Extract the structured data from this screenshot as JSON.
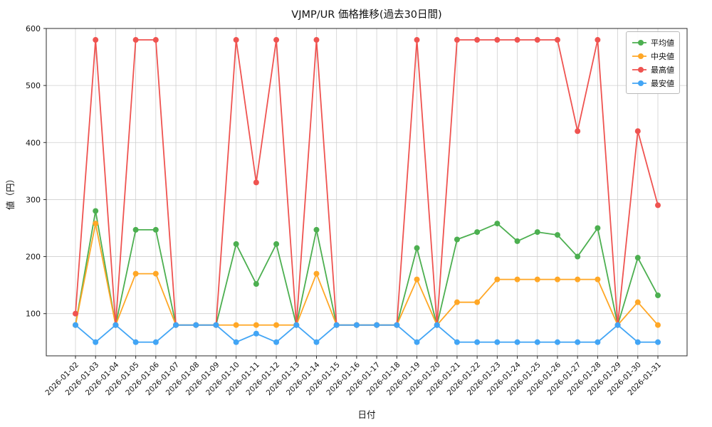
{
  "title": "VJMP/UR 価格推移(過去30日間)",
  "chart_data": {
    "type": "line",
    "title": "VJMP/UR 価格推移(過去30日間)",
    "xlabel": "日付",
    "ylabel": "値（円）",
    "x": [
      "2026-01-02",
      "2026-01-03",
      "2026-01-04",
      "2026-01-05",
      "2026-01-06",
      "2026-01-07",
      "2026-01-08",
      "2026-01-09",
      "2026-01-10",
      "2026-01-11",
      "2026-01-12",
      "2026-01-13",
      "2026-01-14",
      "2026-01-15",
      "2026-01-16",
      "2026-01-17",
      "2026-01-18",
      "2026-01-19",
      "2026-01-20",
      "2026-01-21",
      "2026-01-22",
      "2026-01-23",
      "2026-01-24",
      "2026-01-25",
      "2026-01-26",
      "2026-01-27",
      "2026-01-28",
      "2026-01-29",
      "2026-01-30",
      "2026-01-31"
    ],
    "series": [
      {
        "name": "平均値",
        "color": "#4CAF50",
        "values": [
          80,
          280,
          80,
          247,
          247,
          80,
          80,
          80,
          222,
          152,
          222,
          80,
          247,
          80,
          80,
          80,
          80,
          215,
          80,
          230,
          243,
          258,
          227,
          243,
          238,
          200,
          250,
          80,
          198,
          132
        ]
      },
      {
        "name": "中央値",
        "color": "#FFA726",
        "values": [
          80,
          258,
          80,
          170,
          170,
          80,
          80,
          80,
          80,
          80,
          80,
          80,
          170,
          80,
          80,
          80,
          80,
          160,
          80,
          120,
          120,
          160,
          160,
          160,
          160,
          160,
          160,
          80,
          120,
          80
        ]
      },
      {
        "name": "最高値",
        "color": "#EF5350",
        "values": [
          100,
          580,
          80,
          580,
          580,
          80,
          80,
          80,
          580,
          330,
          580,
          80,
          580,
          80,
          80,
          80,
          80,
          580,
          80,
          580,
          580,
          580,
          580,
          580,
          580,
          420,
          580,
          80,
          420,
          290
        ]
      },
      {
        "name": "最安値",
        "color": "#42A5F5",
        "values": [
          80,
          50,
          80,
          50,
          50,
          80,
          80,
          80,
          50,
          65,
          50,
          80,
          50,
          80,
          80,
          80,
          80,
          50,
          80,
          50,
          50,
          50,
          50,
          50,
          50,
          50,
          50,
          80,
          50,
          50
        ]
      }
    ],
    "yticks": [
      100,
      200,
      300,
      400,
      500,
      600
    ],
    "ylim": [
      26,
      600
    ],
    "grid": true,
    "legend_position": "upper right",
    "grid_color": "#cfcfcf",
    "axis_color": "#2b2b2b",
    "text_color": "#111111"
  }
}
